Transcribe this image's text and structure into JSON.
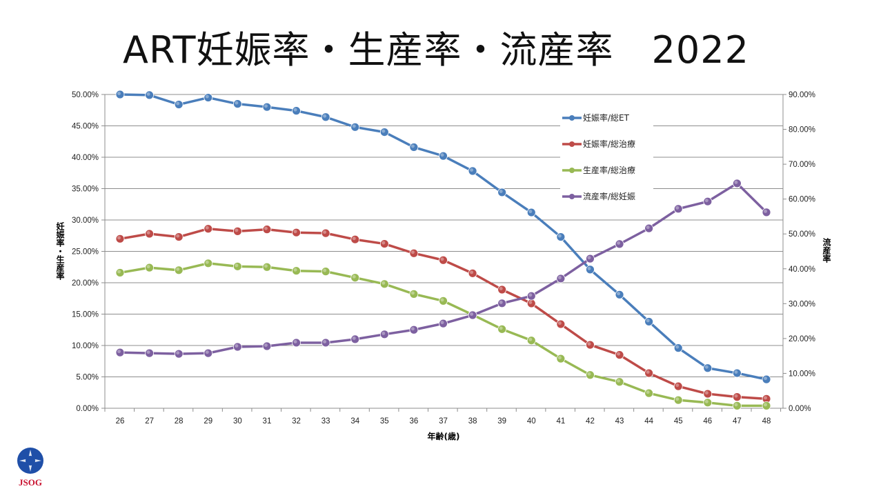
{
  "title": "ART妊娠率・生産率・流産率　2022",
  "logo_text": "JSOG",
  "chart_data": {
    "type": "line",
    "title": "ART妊娠率・生産率・流産率　2022",
    "xlabel": "年齢(歳)",
    "ylabel": "妊娠率・生産率",
    "y2label": "流産率",
    "x": [
      26,
      27,
      28,
      29,
      30,
      31,
      32,
      33,
      34,
      35,
      36,
      37,
      38,
      39,
      40,
      41,
      42,
      43,
      44,
      45,
      46,
      47,
      48
    ],
    "ylim": [
      0,
      50
    ],
    "y2lim": [
      0,
      90
    ],
    "yticks": [
      "0.00%",
      "5.00%",
      "10.00%",
      "15.00%",
      "20.00%",
      "25.00%",
      "30.00%",
      "35.00%",
      "40.00%",
      "45.00%",
      "50.00%"
    ],
    "y2ticks": [
      "0.00%",
      "10.00%",
      "20.00%",
      "30.00%",
      "40.00%",
      "50.00%",
      "60.00%",
      "70.00%",
      "80.00%",
      "90.00%"
    ],
    "grid": true,
    "legend": "upper-right-inside",
    "series": [
      {
        "name": "妊娠率/総ET",
        "axis": "left",
        "color": "#4a7ebb",
        "values": [
          50.0,
          49.9,
          48.4,
          49.5,
          48.5,
          48.0,
          47.4,
          46.4,
          44.8,
          44.0,
          41.6,
          40.2,
          37.8,
          34.4,
          31.2,
          27.3,
          22.1,
          18.1,
          13.8,
          9.6,
          6.4,
          5.6,
          4.6
        ]
      },
      {
        "name": "妊娠率/総治療",
        "axis": "left",
        "color": "#be4b48",
        "values": [
          27.0,
          27.8,
          27.3,
          28.6,
          28.2,
          28.5,
          28.0,
          27.9,
          26.9,
          26.2,
          24.7,
          23.6,
          21.5,
          18.9,
          16.7,
          13.4,
          10.1,
          8.5,
          5.6,
          3.5,
          2.3,
          1.8,
          1.5
        ]
      },
      {
        "name": "生産率/総治療",
        "axis": "left",
        "color": "#98b954",
        "values": [
          21.6,
          22.4,
          22.0,
          23.1,
          22.6,
          22.5,
          21.9,
          21.8,
          20.8,
          19.8,
          18.2,
          17.1,
          14.9,
          12.6,
          10.8,
          7.9,
          5.3,
          4.2,
          2.4,
          1.3,
          0.9,
          0.4,
          0.4
        ]
      },
      {
        "name": "流産率/総妊娠",
        "axis": "right",
        "color": "#7d60a0",
        "values": [
          16.0,
          15.8,
          15.6,
          15.8,
          17.6,
          17.8,
          18.8,
          18.8,
          19.8,
          21.2,
          22.5,
          24.3,
          26.7,
          30.1,
          32.2,
          37.2,
          42.9,
          47.1,
          51.6,
          57.2,
          59.3,
          64.5,
          56.2
        ]
      }
    ]
  }
}
